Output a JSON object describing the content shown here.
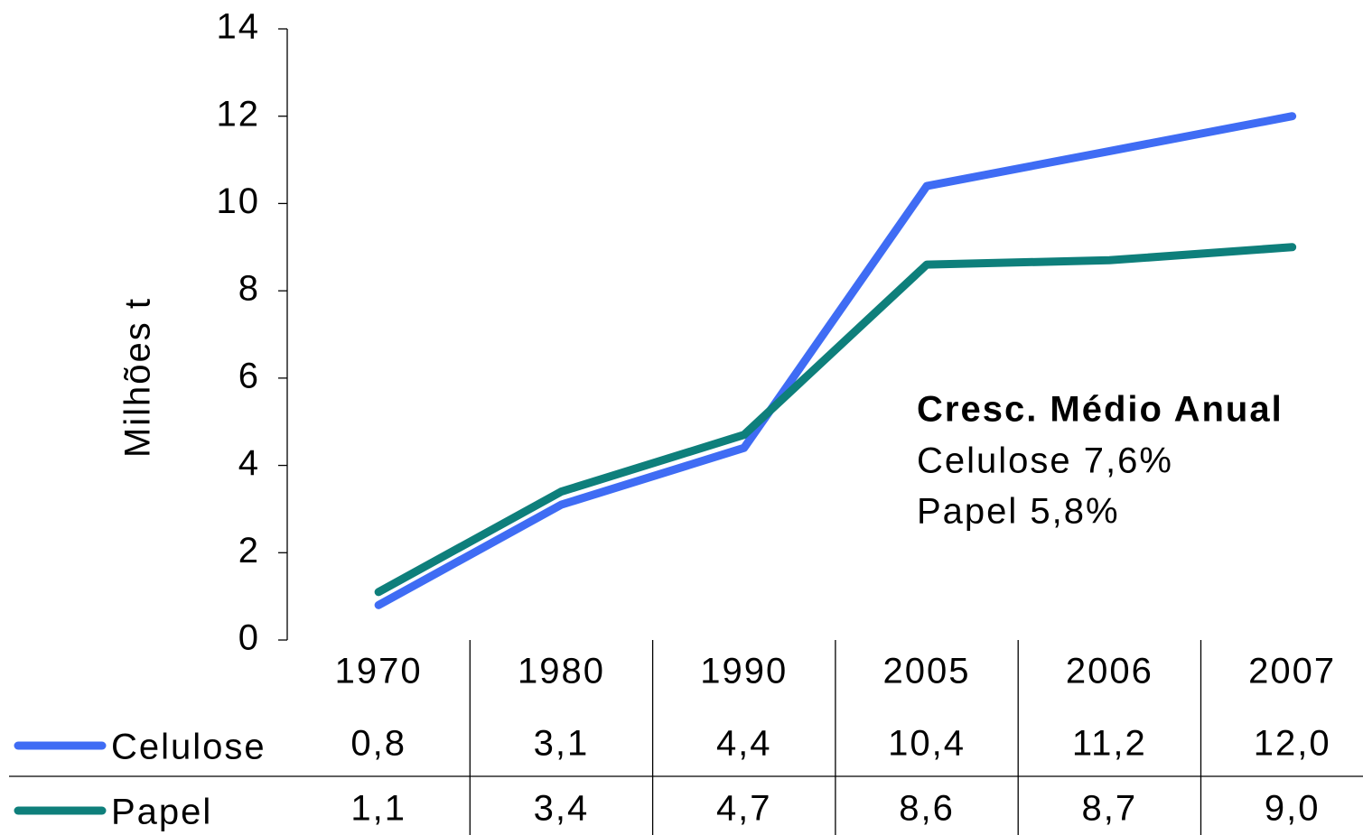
{
  "chart_data": {
    "type": "line",
    "y_label": "Milhões t",
    "categories": [
      "1970",
      "1980",
      "1990",
      "2005",
      "2006",
      "2007"
    ],
    "series": [
      {
        "name": "Celulose",
        "color": "#3f6cf4",
        "values": [
          0.8,
          3.1,
          4.4,
          10.4,
          11.2,
          12.0
        ],
        "value_labels": [
          "0,8",
          "3,1",
          "4,4",
          "10,4",
          "11,2",
          "12,0"
        ]
      },
      {
        "name": "Papel",
        "color": "#0e7f7b",
        "values": [
          1.1,
          3.4,
          4.7,
          8.6,
          8.7,
          9.0
        ],
        "value_labels": [
          "1,1",
          "3,4",
          "4,7",
          "8,6",
          "8,7",
          "9,0"
        ]
      }
    ],
    "ylim": [
      0,
      14
    ],
    "yticks": [
      0,
      2,
      4,
      6,
      8,
      10,
      12,
      14
    ],
    "annotation": {
      "title": "Cresc. Médio Anual",
      "lines": [
        "Celulose 7,6%",
        "Papel 5,8%"
      ]
    }
  }
}
